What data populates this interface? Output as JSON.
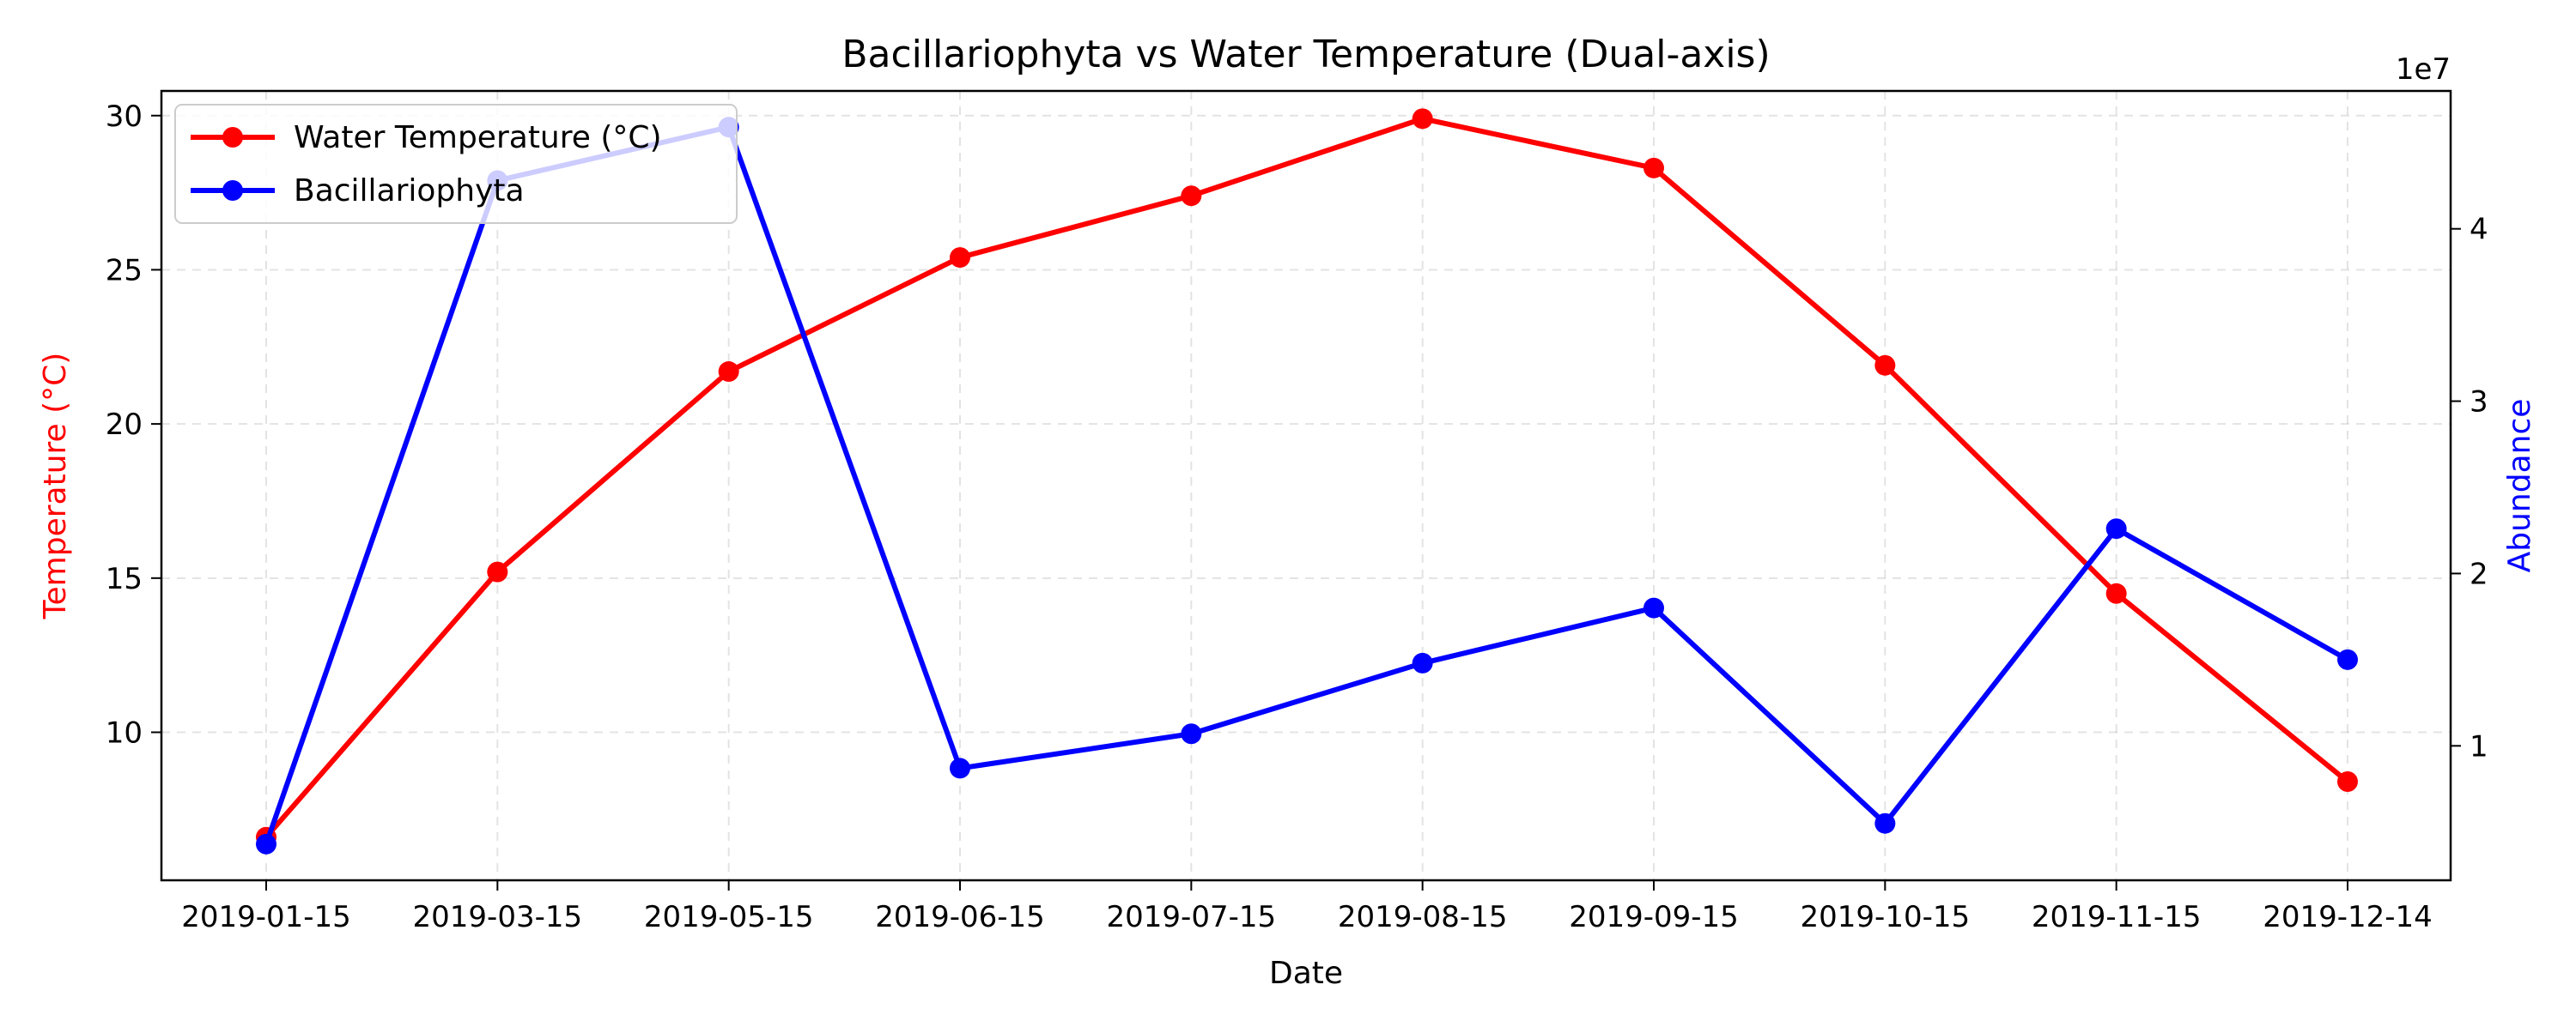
{
  "chart_data": {
    "type": "line",
    "title": "Bacillariophyta vs Water Temperature (Dual-axis)",
    "xlabel": "Date",
    "ylabel_left": "Temperature (°C)",
    "ylabel_right": "Abundance",
    "right_axis_offset_label": "1e7",
    "categories": [
      "2019-01-15",
      "2019-03-15",
      "2019-05-15",
      "2019-06-15",
      "2019-07-15",
      "2019-08-15",
      "2019-09-15",
      "2019-10-15",
      "2019-11-15",
      "2019-12-14"
    ],
    "left_ticks": [
      10,
      15,
      20,
      25,
      30
    ],
    "right_ticks": [
      1,
      2,
      3,
      4
    ],
    "ylim_left": [
      5.2,
      30.8
    ],
    "ylim_right": [
      2200000,
      48000000
    ],
    "grid": true,
    "legend_position": "top-left",
    "series": [
      {
        "name": "Water Temperature (°C)",
        "axis": "left",
        "color": "#ff0000",
        "values": [
          6.6,
          15.2,
          21.7,
          25.4,
          27.4,
          29.9,
          28.3,
          21.9,
          14.5,
          8.4
        ]
      },
      {
        "name": "Bacillariophyta",
        "axis": "right",
        "color": "#0000ff",
        "values": [
          4300000,
          42800000,
          45900000,
          8700000,
          10700000,
          14800000,
          18000000,
          5500000,
          22600000,
          15000000
        ]
      }
    ]
  }
}
